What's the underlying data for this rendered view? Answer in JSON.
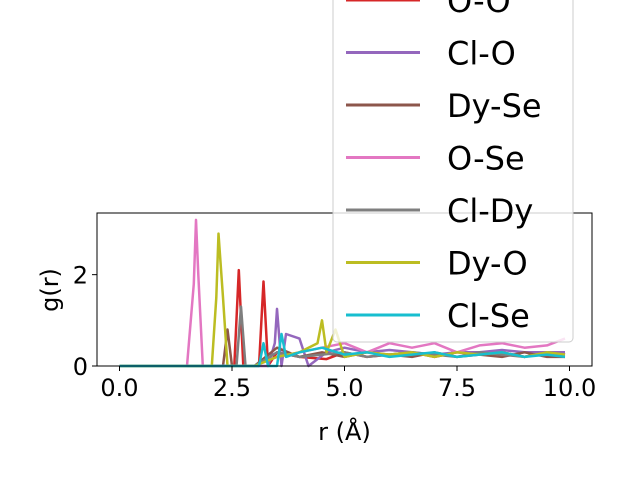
{
  "chart_data": {
    "type": "line",
    "title": "",
    "xlabel": "r (Å)",
    "ylabel": "g(r)",
    "xlim": [
      -0.5,
      10.5
    ],
    "ylim": [
      0,
      3.35
    ],
    "xticks": [
      0.0,
      2.5,
      5.0,
      7.5,
      10.0
    ],
    "xtick_labels": [
      "0.0",
      "2.5",
      "5.0",
      "7.5",
      "10.0"
    ],
    "yticks": [
      0,
      2
    ],
    "ytick_labels": [
      "0",
      "2"
    ],
    "grid": false,
    "legend": {
      "placement": "upper-right",
      "entries": [
        {
          "name": "O-O",
          "color": "#d62728"
        },
        {
          "name": "Cl-O",
          "color": "#9467bd"
        },
        {
          "name": "Dy-Se",
          "color": "#8c564b"
        },
        {
          "name": "O-Se",
          "color": "#e377c2"
        },
        {
          "name": "Cl-Dy",
          "color": "#7f7f7f"
        },
        {
          "name": "Dy-O",
          "color": "#bcbd22"
        },
        {
          "name": "Cl-Se",
          "color": "#17becf"
        }
      ]
    },
    "series": [
      {
        "name": "O-O",
        "color": "#d62728",
        "x": [
          0.0,
          2.4,
          2.55,
          2.65,
          2.75,
          3.1,
          3.2,
          3.3,
          3.5,
          4.0,
          4.6,
          5.0,
          5.5,
          6.0,
          6.5,
          7.0,
          7.5,
          8.0,
          8.5,
          9.0,
          9.5,
          9.9
        ],
        "y": [
          0.0,
          0.0,
          0.0,
          2.1,
          0.0,
          0.0,
          1.85,
          0.0,
          0.3,
          0.2,
          0.15,
          0.3,
          0.2,
          0.25,
          0.3,
          0.2,
          0.3,
          0.25,
          0.3,
          0.2,
          0.3,
          0.25
        ]
      },
      {
        "name": "Cl-O",
        "color": "#9467bd",
        "x": [
          0.0,
          3.3,
          3.45,
          3.5,
          3.6,
          3.7,
          4.0,
          4.2,
          4.6,
          5.0,
          5.5,
          6.0,
          6.5,
          7.0,
          7.5,
          8.0,
          8.5,
          9.0,
          9.5,
          9.9
        ],
        "y": [
          0.0,
          0.0,
          0.5,
          1.25,
          0.0,
          0.7,
          0.6,
          0.0,
          0.3,
          0.4,
          0.3,
          0.35,
          0.3,
          0.25,
          0.3,
          0.3,
          0.35,
          0.3,
          0.3,
          0.3
        ]
      },
      {
        "name": "Dy-Se",
        "color": "#8c564b",
        "x": [
          0.0,
          2.3,
          2.4,
          2.5,
          3.0,
          3.5,
          4.0,
          4.5,
          5.0,
          5.5,
          6.0,
          6.5,
          7.0,
          7.5,
          8.0,
          8.5,
          9.0,
          9.5,
          9.9
        ],
        "y": [
          0.0,
          0.0,
          0.8,
          0.0,
          0.0,
          0.4,
          0.2,
          0.3,
          0.2,
          0.3,
          0.25,
          0.2,
          0.3,
          0.2,
          0.25,
          0.2,
          0.3,
          0.2,
          0.2
        ]
      },
      {
        "name": "O-Se",
        "color": "#e377c2",
        "x": [
          0.0,
          1.5,
          1.65,
          1.7,
          1.75,
          1.85,
          2.0,
          3.0,
          3.5,
          4.0,
          4.5,
          5.0,
          5.5,
          6.0,
          6.5,
          7.0,
          7.5,
          8.0,
          8.5,
          9.0,
          9.5,
          9.9
        ],
        "y": [
          0.0,
          0.0,
          1.8,
          3.2,
          2.0,
          0.0,
          0.0,
          0.0,
          0.2,
          0.3,
          0.4,
          0.5,
          0.3,
          0.5,
          0.4,
          0.5,
          0.3,
          0.45,
          0.5,
          0.4,
          0.45,
          0.6
        ]
      },
      {
        "name": "Cl-Dy",
        "color": "#7f7f7f",
        "x": [
          0.0,
          2.6,
          2.7,
          2.8,
          3.0,
          3.5,
          4.0,
          4.5,
          5.0,
          5.5,
          6.0,
          6.5,
          7.0,
          7.5,
          8.0,
          8.5,
          9.0,
          9.5,
          9.9
        ],
        "y": [
          0.0,
          0.0,
          1.3,
          0.0,
          0.0,
          0.3,
          0.2,
          0.25,
          0.3,
          0.2,
          0.25,
          0.3,
          0.25,
          0.2,
          0.3,
          0.25,
          0.2,
          0.3,
          0.25
        ]
      },
      {
        "name": "Dy-O",
        "color": "#bcbd22",
        "x": [
          0.0,
          2.05,
          2.15,
          2.2,
          2.3,
          2.4,
          3.0,
          3.5,
          4.0,
          4.4,
          4.5,
          4.6,
          4.8,
          5.0,
          5.5,
          6.0,
          6.5,
          7.0,
          7.5,
          8.0,
          8.5,
          9.0,
          9.5,
          9.9
        ],
        "y": [
          0.0,
          0.0,
          1.5,
          2.9,
          1.5,
          0.0,
          0.0,
          0.2,
          0.3,
          0.5,
          1.0,
          0.3,
          0.8,
          0.2,
          0.3,
          0.25,
          0.3,
          0.2,
          0.3,
          0.25,
          0.3,
          0.2,
          0.3,
          0.25
        ]
      },
      {
        "name": "Cl-Se",
        "color": "#17becf",
        "x": [
          0.0,
          3.1,
          3.2,
          3.3,
          3.5,
          3.6,
          3.7,
          4.0,
          4.5,
          5.0,
          5.5,
          6.0,
          6.5,
          7.0,
          7.5,
          8.0,
          8.5,
          9.0,
          9.5,
          9.9
        ],
        "y": [
          0.0,
          0.0,
          0.5,
          0.0,
          0.0,
          0.7,
          0.2,
          0.3,
          0.4,
          0.25,
          0.3,
          0.2,
          0.25,
          0.3,
          0.2,
          0.25,
          0.3,
          0.2,
          0.25,
          0.2
        ]
      }
    ]
  }
}
